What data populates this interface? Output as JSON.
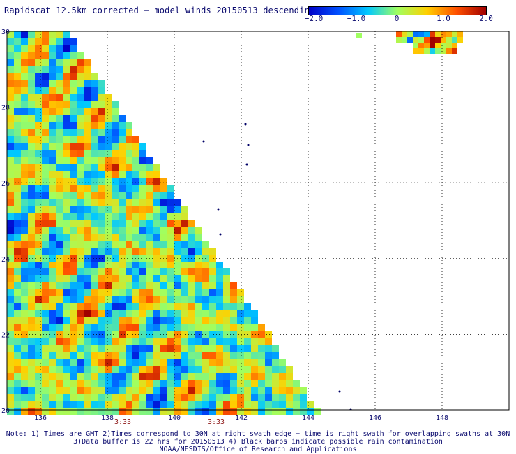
{
  "title": "Rapidscat 12.5km corrected − model winds 20150513 descending",
  "colorbar": {
    "labels": [
      "−2.0",
      "−1.0",
      "0",
      "1.0",
      "2.0"
    ],
    "values": [
      -2.0,
      -1.0,
      0,
      1.0,
      2.0
    ],
    "colors": [
      "#0000c8",
      "#0050ff",
      "#00c8ff",
      "#a0ff60",
      "#ffd000",
      "#ff5000",
      "#a00000"
    ]
  },
  "map": {
    "lon_range": [
      135,
      150
    ],
    "lat_range": [
      20,
      30
    ],
    "x_ticks": [
      "136",
      "138",
      "140",
      "142",
      "144",
      "146",
      "148"
    ],
    "y_ticks": [
      "20",
      "22",
      "24",
      "26",
      "28",
      "30"
    ],
    "swath_times": [
      "3:33",
      "3:33"
    ],
    "gridlines": true
  },
  "notes": [
    "Note: 1) Times are GMT 2)Times correspond to 30N at right swath edge − time is right swath for overlapping swaths at 30N",
    "3)Data buffer is 22 hrs for 20150513 4) Black barbs indicate possible rain contamination",
    "NOAA/NESDIS/Office of Research and Applications"
  ]
}
